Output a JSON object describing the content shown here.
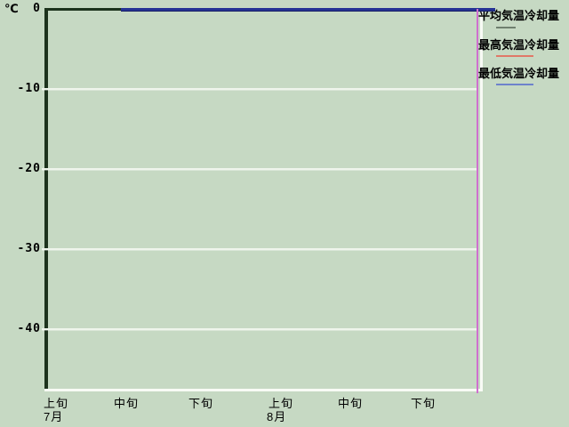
{
  "unit_label": "℃",
  "y_axis": {
    "ticks": [
      "0",
      "-10",
      "-20",
      "-30",
      "-40"
    ]
  },
  "x_axis": {
    "decades": [
      "上旬",
      "中旬",
      "下旬",
      "上旬",
      "中旬",
      "下旬"
    ],
    "months": [
      "7月",
      "8月"
    ]
  },
  "legend": [
    {
      "label": "平均気温冷却量",
      "color": "#6f7f6f"
    },
    {
      "label": "最高気温冷却量",
      "color": "#e07868"
    },
    {
      "label": "最低気温冷却量",
      "color": "#6e82cc"
    }
  ],
  "colors": {
    "background": "#c6d9c3",
    "axis_dark": "#1d331d",
    "border_white": "#f8fbf5",
    "gridline": "#eff5ec",
    "zero_line_navy": "#253294",
    "vertical_marker_magenta": "#cf6fcf"
  },
  "chart_data": {
    "type": "line",
    "title": "",
    "ylabel": "℃",
    "ylim": [
      -47,
      0
    ],
    "yticks": [
      0,
      -10,
      -20,
      -30,
      -40
    ],
    "x_categories": [
      "7月上旬",
      "7月中旬",
      "7月下旬",
      "8月上旬",
      "8月中旬",
      "8月下旬"
    ],
    "series": [
      {
        "name": "平均気温冷却量",
        "legend_color": "#6f7f6f",
        "values": [
          null,
          0,
          0,
          0,
          0,
          0
        ]
      },
      {
        "name": "最高気温冷却量",
        "legend_color": "#e07868",
        "values": [
          null,
          0,
          0,
          0,
          0,
          0
        ]
      },
      {
        "name": "最低気温冷却量",
        "legend_color": "#6e82cc",
        "values": [
          null,
          0,
          0,
          0,
          0,
          0
        ]
      }
    ],
    "plotted_line": {
      "color": "#253294",
      "value": 0,
      "from": "7月中旬",
      "to": "8月下旬",
      "note": "all visible series overlap at 0; drawn as one navy line along the top axis"
    },
    "vertical_marker": {
      "color": "#cf6fcf",
      "position": "right edge of plot (end of 8月下旬)",
      "spans": "full height"
    },
    "grid": true,
    "legend_position": "right"
  }
}
